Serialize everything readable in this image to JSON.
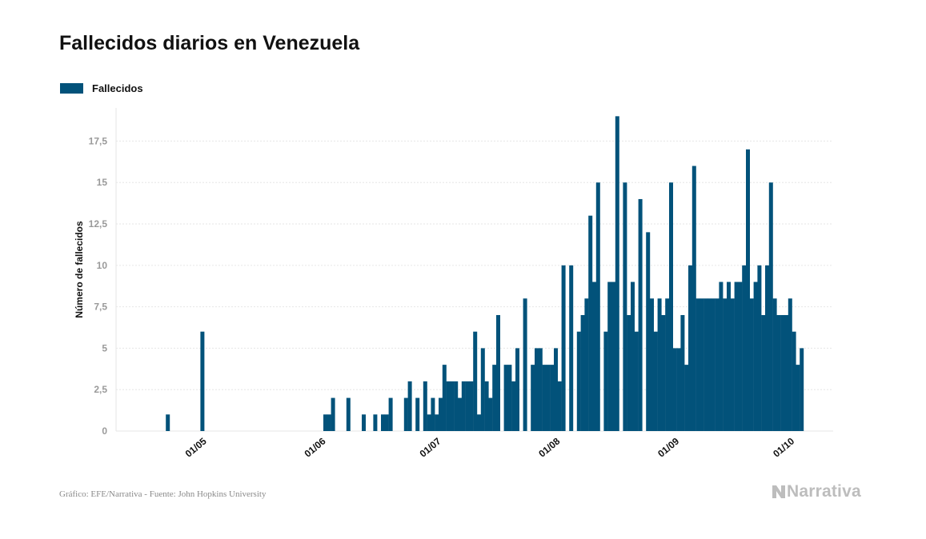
{
  "chart_data": {
    "type": "bar",
    "title": "Fallecidos diarios en Venezuela",
    "ylabel": "Número de fallecidos",
    "xlabel": "",
    "ylim": [
      0,
      19.5
    ],
    "yticks": [
      0,
      2.5,
      5,
      7.5,
      10,
      12.5,
      15,
      17.5
    ],
    "ytick_labels": [
      "0",
      "2,5",
      "5",
      "7,5",
      "10",
      "12,5",
      "15",
      "17,5"
    ],
    "xticks": [
      {
        "date": "2020-05-01",
        "label": "01/05"
      },
      {
        "date": "2020-06-01",
        "label": "01/06"
      },
      {
        "date": "2020-07-01",
        "label": "01/07"
      },
      {
        "date": "2020-08-01",
        "label": "01/08"
      },
      {
        "date": "2020-09-01",
        "label": "01/09"
      },
      {
        "date": "2020-10-01",
        "label": "01/10"
      }
    ],
    "date_range": [
      "2020-04-15",
      "2020-10-07"
    ],
    "grid": true,
    "legend_position": "top-left",
    "series": [
      {
        "name": "Fallecidos",
        "color": "#02527a",
        "values": [
          0,
          0,
          0,
          0,
          0,
          0,
          0,
          1,
          0,
          0,
          0,
          0,
          0,
          0,
          0,
          0,
          6,
          0,
          0,
          0,
          0,
          0,
          0,
          0,
          0,
          0,
          0,
          0,
          0,
          0,
          0,
          0,
          0,
          0,
          0,
          0,
          0,
          0,
          0,
          0,
          0,
          0,
          0,
          0,
          0,
          0,
          0,
          0,
          1,
          1,
          2,
          0,
          0,
          0,
          2,
          0,
          0,
          0,
          1,
          0,
          0,
          1,
          0,
          1,
          1,
          2,
          0,
          0,
          0,
          2,
          3,
          0,
          2,
          0,
          3,
          1,
          2,
          1,
          2,
          4,
          3,
          3,
          3,
          2,
          3,
          3,
          3,
          6,
          1,
          5,
          3,
          2,
          4,
          7,
          0,
          4,
          4,
          3,
          5,
          0,
          8,
          0,
          4,
          5,
          5,
          4,
          4,
          4,
          5,
          3,
          10,
          0,
          10,
          0,
          6,
          7,
          8,
          13,
          9,
          15,
          0,
          6,
          9,
          9,
          19,
          0,
          15,
          7,
          9,
          6,
          14,
          0,
          12,
          8,
          6,
          8,
          7,
          8,
          15,
          5,
          5,
          7,
          4,
          10,
          16,
          8,
          8,
          8,
          8,
          8,
          8,
          9,
          8,
          9,
          8,
          9,
          9,
          10,
          17,
          8,
          9,
          10,
          7,
          10,
          15,
          8,
          7,
          7,
          7,
          8,
          6,
          4,
          5
        ]
      }
    ]
  },
  "header": {
    "title": "Fallecidos diarios en Venezuela"
  },
  "legend": {
    "label": "Fallecidos",
    "color": "#02527a"
  },
  "footer": {
    "source": "Gráfico: EFE/Narrativa - Fuente: John Hopkins University",
    "brand": "Narrativa",
    "brand_icon": "narrativa-logo-icon"
  }
}
